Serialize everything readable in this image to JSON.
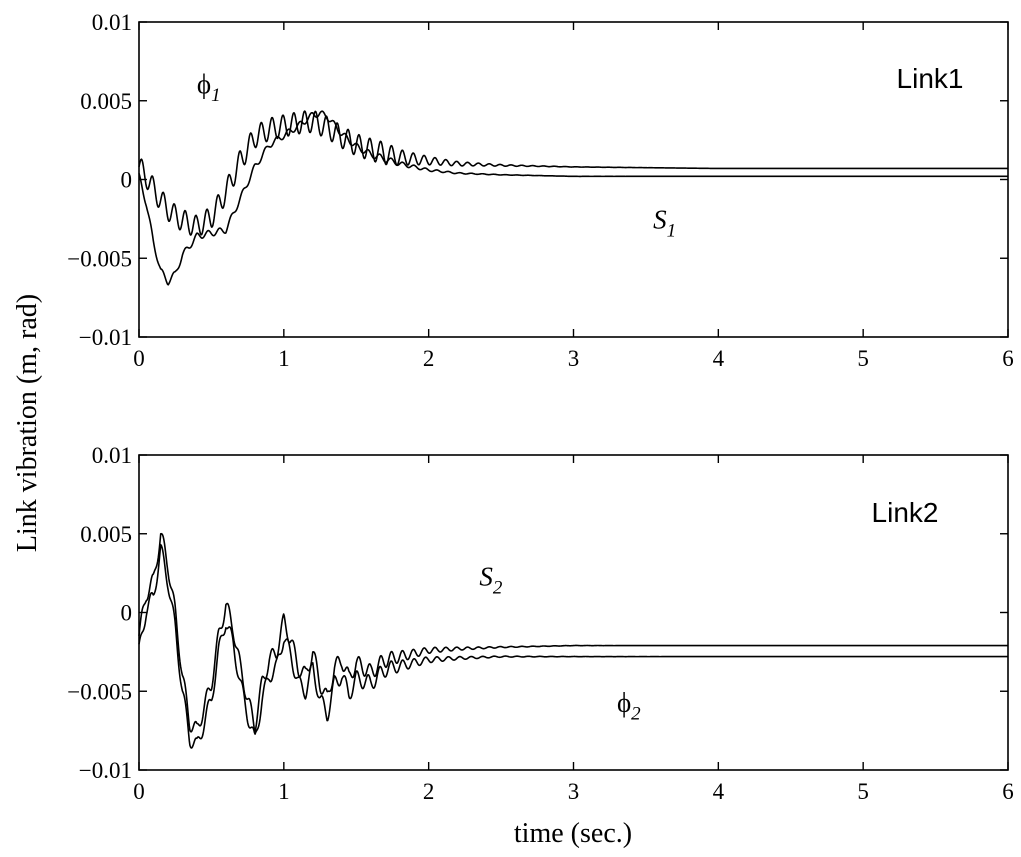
{
  "figure": {
    "ylabel": "Link vibration (m, rad)",
    "xlabel": "time (sec.)",
    "line_color": "#000000"
  },
  "chart_data": [
    {
      "type": "line",
      "title": "Link1",
      "xlim": [
        0,
        6
      ],
      "ylim": [
        -0.01,
        0.01
      ],
      "x_ticks": [
        "0",
        "1",
        "2",
        "3",
        "4",
        "5",
        "6"
      ],
      "y_ticks": [
        "0.01",
        "0.005",
        "0",
        "−0.005",
        "−0.01"
      ],
      "grid": false,
      "annotations": [
        {
          "symbol": "ϕ",
          "sub": "1",
          "series": "phi1",
          "at": [
            0.4,
            0.0055
          ]
        },
        {
          "symbol": "S",
          "sub": "1",
          "series": "s1",
          "at": [
            3.55,
            -0.0031
          ]
        }
      ],
      "series": [
        {
          "id": "phi1",
          "x": [
            0,
            0.05,
            0.1,
            0.15,
            0.2,
            0.25,
            0.3,
            0.35,
            0.4,
            0.5,
            0.6,
            0.7,
            0.8,
            0.9,
            1.0,
            1.1,
            1.2,
            1.3,
            1.4,
            1.5,
            1.6,
            1.8,
            2.0,
            2.2,
            2.5,
            3.0,
            4.0,
            5.0,
            6.0
          ],
          "y": [
            0.0008,
            0.0002,
            -0.0006,
            -0.0013,
            -0.0019,
            -0.0023,
            -0.0026,
            -0.0028,
            -0.003,
            -0.0024,
            -0.0008,
            0.0012,
            0.0027,
            0.0032,
            0.0034,
            0.0036,
            0.0037,
            0.0033,
            0.0027,
            0.0022,
            0.0019,
            0.0014,
            0.0012,
            0.001,
            0.0009,
            0.0008,
            0.0007,
            0.0007,
            0.0007
          ],
          "ripple_amplitude": 0.0007
        },
        {
          "id": "s1",
          "x": [
            0,
            0.05,
            0.1,
            0.15,
            0.2,
            0.25,
            0.3,
            0.4,
            0.5,
            0.6,
            0.7,
            0.8,
            0.9,
            1.0,
            1.1,
            1.2,
            1.25,
            1.3,
            1.4,
            1.5,
            1.6,
            1.8,
            2.0,
            2.2,
            2.5,
            3.0,
            4.0,
            5.0,
            6.0
          ],
          "y": [
            0.0002,
            -0.0015,
            -0.004,
            -0.0058,
            -0.0065,
            -0.006,
            -0.0048,
            -0.0036,
            -0.0034,
            -0.0032,
            -0.0012,
            0.0008,
            0.0022,
            0.0028,
            0.0034,
            0.0041,
            0.0042,
            0.004,
            0.0029,
            0.0021,
            0.0016,
            0.001,
            0.0006,
            0.0004,
            0.0003,
            0.0002,
            0.0002,
            0.0002,
            0.0002
          ],
          "ripple_amplitude": 0.0002
        }
      ]
    },
    {
      "type": "line",
      "title": "Link2",
      "xlim": [
        0,
        6
      ],
      "ylim": [
        -0.01,
        0.01
      ],
      "x_ticks": [
        "0",
        "1",
        "2",
        "3",
        "4",
        "5",
        "6"
      ],
      "y_ticks": [
        "0.01",
        "0.005",
        "0",
        "−0.005",
        "−0.01"
      ],
      "grid": false,
      "annotations": [
        {
          "symbol": "S",
          "sub": "2",
          "series": "s2",
          "at": [
            2.35,
            0.0017
          ]
        },
        {
          "symbol": "ϕ",
          "sub": "2",
          "series": "phi2",
          "at": [
            3.3,
            -0.0063
          ]
        }
      ],
      "series": [
        {
          "id": "s2",
          "x": [
            0,
            0.05,
            0.1,
            0.15,
            0.2,
            0.25,
            0.3,
            0.35,
            0.4,
            0.45,
            0.5,
            0.55,
            0.6,
            0.65,
            0.7,
            0.75,
            0.8,
            0.85,
            0.9,
            0.95,
            1.0,
            1.05,
            1.1,
            1.15,
            1.2,
            1.25,
            1.3,
            1.35,
            1.4,
            1.45,
            1.5,
            1.6,
            1.7,
            1.8,
            2.0,
            2.2,
            2.5,
            3.0,
            4.0,
            5.0,
            6.0
          ],
          "y": [
            -0.0015,
            0.0012,
            0.002,
            0.005,
            0.003,
            0.0,
            -0.004,
            -0.007,
            -0.0075,
            -0.006,
            -0.0045,
            -0.0015,
            0.0005,
            -0.001,
            -0.0035,
            -0.0055,
            -0.0072,
            -0.0045,
            -0.003,
            -0.0025,
            -0.0005,
            -0.0018,
            -0.0035,
            -0.004,
            -0.0025,
            -0.0045,
            -0.0055,
            -0.0035,
            -0.003,
            -0.0042,
            -0.0032,
            -0.0038,
            -0.003,
            -0.0028,
            -0.0024,
            -0.0023,
            -0.0022,
            -0.0021,
            -0.0021,
            -0.0021,
            -0.0021
          ],
          "ripple_amplitude": 0.0005
        },
        {
          "id": "phi2",
          "x": [
            0,
            0.05,
            0.1,
            0.15,
            0.2,
            0.25,
            0.3,
            0.35,
            0.4,
            0.45,
            0.5,
            0.55,
            0.6,
            0.65,
            0.7,
            0.75,
            0.8,
            0.85,
            0.9,
            0.95,
            1.0,
            1.05,
            1.1,
            1.15,
            1.2,
            1.25,
            1.3,
            1.35,
            1.4,
            1.45,
            1.5,
            1.6,
            1.7,
            1.8,
            2.0,
            2.2,
            2.5,
            3.0,
            4.0,
            5.0,
            6.0
          ],
          "y": [
            -0.0025,
            0.0002,
            0.001,
            0.004,
            0.002,
            -0.001,
            -0.005,
            -0.008,
            -0.0085,
            -0.007,
            -0.0055,
            -0.0025,
            -0.0005,
            -0.002,
            -0.0045,
            -0.0065,
            -0.0082,
            -0.0055,
            -0.004,
            -0.0035,
            -0.0015,
            -0.0028,
            -0.0045,
            -0.005,
            -0.0035,
            -0.0055,
            -0.0065,
            -0.0045,
            -0.004,
            -0.0052,
            -0.0042,
            -0.0045,
            -0.0036,
            -0.0034,
            -0.003,
            -0.0029,
            -0.0028,
            -0.0028,
            -0.0028,
            -0.0028,
            -0.0028
          ],
          "ripple_amplitude": 0.0005
        }
      ]
    }
  ]
}
